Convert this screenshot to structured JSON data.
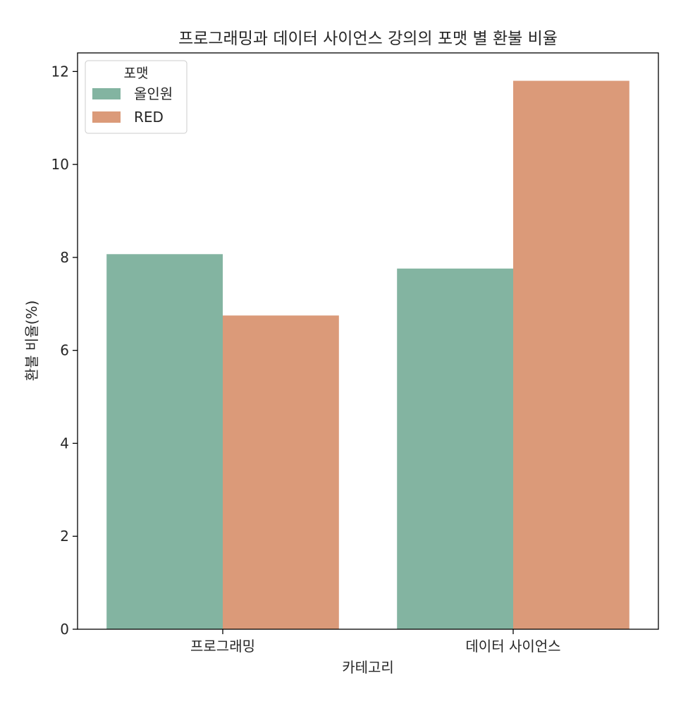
{
  "chart_data": {
    "type": "bar",
    "title": "프로그래밍과 데이터 사이언스 강의의 포맷 별 환불 비율",
    "xlabel": "카테고리",
    "ylabel": "환불 비율(%)",
    "categories": [
      "프로그래밍",
      "데이터 사이언스"
    ],
    "series": [
      {
        "name": "올인원",
        "values": [
          8.07,
          7.76
        ],
        "color": "#83b4a1"
      },
      {
        "name": "RED",
        "values": [
          6.75,
          11.8
        ],
        "color": "#db9a79"
      }
    ],
    "ylim": [
      0,
      12.4
    ],
    "yticks": [
      0,
      2,
      4,
      6,
      8,
      10,
      12
    ],
    "grid": false,
    "legend": {
      "title": "포맷",
      "placement": "top-left"
    }
  }
}
